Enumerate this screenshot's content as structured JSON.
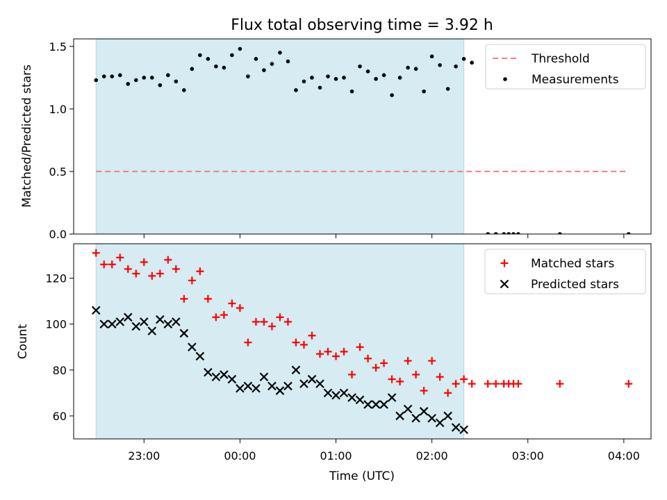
{
  "chart_data": {
    "type": "scatter",
    "title": "Flux total observing time = 3.92 h",
    "xlabel": "Time (UTC)",
    "x_ticks": [
      "23:00",
      "00:00",
      "01:00",
      "02:00",
      "03:00",
      "04:00"
    ],
    "x_range": [
      "22:16",
      "04:17"
    ],
    "shaded_span": [
      "22:30",
      "02:20"
    ],
    "shade_color": "#add8e6",
    "panels": [
      {
        "ylabel": "Matched/Predicted stars",
        "ylim": [
          0,
          1.56
        ],
        "y_ticks": [
          "0.0",
          "0.5",
          "1.0",
          "1.5"
        ],
        "legend_position": "upper-right",
        "series": [
          {
            "name": "Threshold",
            "kind": "dashed-line",
            "color": "#f08080",
            "x": [
              "22:30",
              "04:03"
            ],
            "y": [
              0.5,
              0.5
            ]
          },
          {
            "name": "Measurements",
            "kind": "dot",
            "color": "#000000",
            "x": [
              "22:30",
              "22:35",
              "22:40",
              "22:45",
              "22:50",
              "22:55",
              "23:00",
              "23:05",
              "23:10",
              "23:15",
              "23:20",
              "23:25",
              "23:30",
              "23:35",
              "23:40",
              "23:45",
              "23:50",
              "23:55",
              "00:00",
              "00:05",
              "00:10",
              "00:15",
              "00:20",
              "00:25",
              "00:30",
              "00:35",
              "00:40",
              "00:45",
              "00:50",
              "00:55",
              "01:00",
              "01:05",
              "01:10",
              "01:15",
              "01:20",
              "01:25",
              "01:30",
              "01:35",
              "01:40",
              "01:45",
              "01:50",
              "01:55",
              "02:00",
              "02:05",
              "02:10",
              "02:15",
              "02:20",
              "02:25",
              "02:35",
              "02:40",
              "02:45",
              "02:48",
              "02:51",
              "02:54",
              "03:20",
              "04:03"
            ],
            "y": [
              1.23,
              1.26,
              1.26,
              1.27,
              1.2,
              1.23,
              1.25,
              1.25,
              1.19,
              1.27,
              1.22,
              1.15,
              1.32,
              1.43,
              1.4,
              1.34,
              1.33,
              1.43,
              1.48,
              1.26,
              1.4,
              1.31,
              1.36,
              1.45,
              1.38,
              1.15,
              1.22,
              1.25,
              1.17,
              1.26,
              1.24,
              1.25,
              1.14,
              1.34,
              1.3,
              1.24,
              1.27,
              1.11,
              1.25,
              1.33,
              1.32,
              1.14,
              1.42,
              1.35,
              1.16,
              1.34,
              1.4,
              1.37,
              0.0,
              0.0,
              0.0,
              0.0,
              0.0,
              0.0,
              0.0,
              0.0
            ]
          }
        ]
      },
      {
        "ylabel": "Count",
        "ylim": [
          50,
          135
        ],
        "y_ticks": [
          "60",
          "80",
          "100",
          "120"
        ],
        "legend_position": "upper-right",
        "series": [
          {
            "name": "Matched stars",
            "kind": "plus",
            "color": "#ff0000",
            "x": [
              "22:30",
              "22:35",
              "22:40",
              "22:45",
              "22:50",
              "22:55",
              "23:00",
              "23:05",
              "23:10",
              "23:15",
              "23:20",
              "23:25",
              "23:30",
              "23:35",
              "23:40",
              "23:45",
              "23:50",
              "23:55",
              "00:00",
              "00:05",
              "00:10",
              "00:15",
              "00:20",
              "00:25",
              "00:30",
              "00:35",
              "00:40",
              "00:45",
              "00:50",
              "00:55",
              "01:00",
              "01:05",
              "01:10",
              "01:15",
              "01:20",
              "01:25",
              "01:30",
              "01:35",
              "01:40",
              "01:45",
              "01:50",
              "01:55",
              "02:00",
              "02:05",
              "02:10",
              "02:15",
              "02:20",
              "02:25",
              "02:35",
              "02:40",
              "02:45",
              "02:48",
              "02:51",
              "02:54",
              "03:20",
              "04:03"
            ],
            "y": [
              131,
              126,
              126,
              129,
              124,
              122,
              127,
              121,
              122,
              128,
              124,
              111,
              119,
              123,
              111,
              103,
              104,
              109,
              107,
              92,
              101,
              101,
              99,
              103,
              101,
              92,
              91,
              95,
              87,
              88,
              86,
              88,
              78,
              90,
              85,
              81,
              83,
              76,
              75,
              84,
              78,
              71,
              84,
              77,
              70,
              74,
              76,
              74,
              74,
              74,
              74,
              74,
              74,
              74,
              74,
              74
            ]
          },
          {
            "name": "Predicted stars",
            "kind": "cross",
            "color": "#000000",
            "x": [
              "22:30",
              "22:35",
              "22:40",
              "22:45",
              "22:50",
              "22:55",
              "23:00",
              "23:05",
              "23:10",
              "23:15",
              "23:20",
              "23:25",
              "23:30",
              "23:35",
              "23:40",
              "23:45",
              "23:50",
              "23:55",
              "00:00",
              "00:05",
              "00:10",
              "00:15",
              "00:20",
              "00:25",
              "00:30",
              "00:35",
              "00:40",
              "00:45",
              "00:50",
              "00:55",
              "01:00",
              "01:05",
              "01:10",
              "01:15",
              "01:20",
              "01:25",
              "01:30",
              "01:35",
              "01:40",
              "01:45",
              "01:50",
              "01:55",
              "02:00",
              "02:05",
              "02:10",
              "02:15",
              "02:20"
            ],
            "y": [
              106,
              100,
              100,
              101,
              103,
              99,
              101,
              97,
              102,
              100,
              101,
              96,
              90,
              86,
              79,
              77,
              78,
              76,
              72,
              73,
              72,
              77,
              73,
              71,
              73,
              80,
              74,
              76,
              74,
              70,
              69,
              70,
              68,
              67,
              65,
              65,
              65,
              68,
              60,
              63,
              59,
              62,
              59,
              57,
              60,
              55,
              54
            ]
          }
        ]
      }
    ]
  }
}
